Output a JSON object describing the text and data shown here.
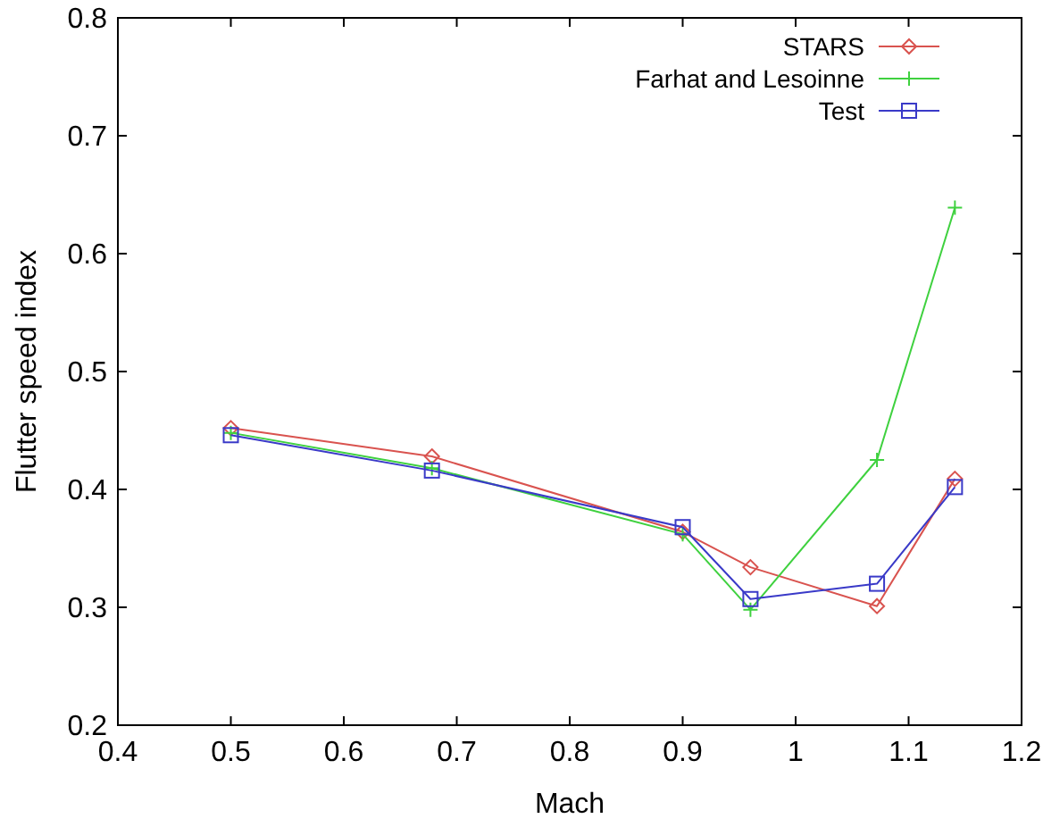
{
  "chart_data": {
    "type": "line",
    "xlabel": "Mach",
    "ylabel": "Flutter speed index",
    "x": [
      0.5,
      0.678,
      0.9,
      0.96,
      1.072,
      1.141
    ],
    "xlim": [
      0.4,
      1.2
    ],
    "xticks": [
      0.4,
      0.5,
      0.6,
      0.7,
      0.8,
      0.9,
      1,
      1.1,
      1.2
    ],
    "ylim": [
      0.2,
      0.8
    ],
    "yticks": [
      0.2,
      0.3,
      0.4,
      0.5,
      0.6,
      0.7,
      0.8
    ],
    "grid": false,
    "legend": "top right",
    "line_style": "solid",
    "series": [
      {
        "name": "STARS",
        "color": "#d9534f",
        "marker": "diamond",
        "values": [
          0.452,
          0.428,
          0.364,
          0.334,
          0.301,
          0.409
        ]
      },
      {
        "name": "Farhat and Lesoinne",
        "color": "#3fd13f",
        "marker": "cross",
        "values": [
          0.448,
          0.418,
          0.362,
          0.298,
          0.425,
          0.639
        ]
      },
      {
        "name": "Test",
        "color": "#3a3ac8",
        "marker": "square",
        "values": [
          0.446,
          0.416,
          0.368,
          0.307,
          0.32,
          0.402
        ]
      }
    ]
  }
}
